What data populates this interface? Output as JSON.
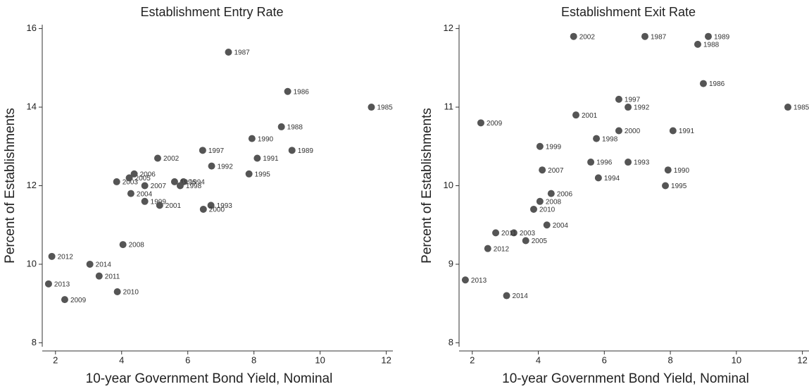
{
  "chart_data": [
    {
      "type": "scatter",
      "title": "Establishment Entry Rate",
      "x_label": "10-year Government Bond Yield, Nominal",
      "y_label": "Percent of Establishments",
      "color": "#555555",
      "point_labels": [
        "1985",
        "1986",
        "1987",
        "1988",
        "1989",
        "1990",
        "1991",
        "1992",
        "1993",
        "1994",
        "1995",
        "1996",
        "1997",
        "1998",
        "1999",
        "2000",
        "2001",
        "2002",
        "2003",
        "2004",
        "2005",
        "2006",
        "2007",
        "2008",
        "2009",
        "2010",
        "2011",
        "2012",
        "2013",
        "2014"
      ],
      "x": [
        11.55,
        9.02,
        7.23,
        8.83,
        9.15,
        7.94,
        8.1,
        6.72,
        6.7,
        5.87,
        7.85,
        5.6,
        6.45,
        5.77,
        4.7,
        6.47,
        5.15,
        5.09,
        3.85,
        4.28,
        4.23,
        4.38,
        4.7,
        4.04,
        2.28,
        3.87,
        3.32,
        1.89,
        1.79,
        3.04
      ],
      "values": [
        14.0,
        14.4,
        15.4,
        13.5,
        12.9,
        13.2,
        12.7,
        12.5,
        11.5,
        12.1,
        12.3,
        12.1,
        12.9,
        12.0,
        11.6,
        11.4,
        11.5,
        12.7,
        12.1,
        11.8,
        12.2,
        12.3,
        12.0,
        10.5,
        9.1,
        9.3,
        9.7,
        10.2,
        9.5,
        10.0
      ],
      "xlim": [
        1.6,
        12.2
      ],
      "ylim": [
        7.9,
        16.1
      ],
      "xticks": [
        2,
        4,
        6,
        8,
        10,
        12
      ],
      "yticks": [
        8,
        10,
        12,
        14,
        16
      ]
    },
    {
      "type": "scatter",
      "title": "Establishment Exit Rate",
      "x_label": "10-year Government Bond Yield, Nominal",
      "y_label": "Percent of Establishments",
      "color": "#555555",
      "point_labels": [
        "1985",
        "1986",
        "1987",
        "1988",
        "1989",
        "1990",
        "1991",
        "1992",
        "1993",
        "1994",
        "1995",
        "1996",
        "1997",
        "1998",
        "1999",
        "2000",
        "2001",
        "2002",
        "2003",
        "2004",
        "2005",
        "2006",
        "2007",
        "2008",
        "2009",
        "2010",
        "2011",
        "2012",
        "2013",
        "2014"
      ],
      "x": [
        11.56,
        9.0,
        7.23,
        8.83,
        9.15,
        7.93,
        8.08,
        6.72,
        6.72,
        5.82,
        7.85,
        5.59,
        6.44,
        5.76,
        4.05,
        6.44,
        5.14,
        5.07,
        3.26,
        4.26,
        3.62,
        4.39,
        4.12,
        4.05,
        2.26,
        3.86,
        2.71,
        2.47,
        1.79,
        3.04
      ],
      "values": [
        11.0,
        11.3,
        11.9,
        11.8,
        11.9,
        10.2,
        10.7,
        11.0,
        10.3,
        10.1,
        10.0,
        10.3,
        11.1,
        10.6,
        10.5,
        10.7,
        10.9,
        11.9,
        9.4,
        9.5,
        9.3,
        9.9,
        10.2,
        9.8,
        10.8,
        9.7,
        9.4,
        9.2,
        8.8,
        8.6
      ],
      "xlim": [
        1.6,
        12.2
      ],
      "ylim": [
        7.95,
        12.05
      ],
      "xticks": [
        2,
        4,
        6,
        8,
        10,
        12
      ],
      "yticks": [
        8,
        9,
        10,
        11,
        12
      ]
    }
  ]
}
